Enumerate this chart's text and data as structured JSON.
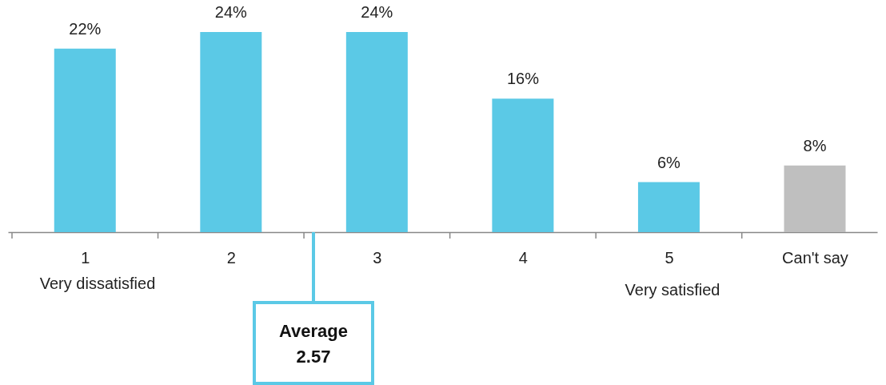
{
  "chart_data": {
    "type": "bar",
    "categories": [
      "1",
      "2",
      "3",
      "4",
      "5",
      "Can't say"
    ],
    "values": [
      22,
      24,
      24,
      16,
      6,
      8
    ],
    "colors": [
      "#5bc9e6",
      "#5bc9e6",
      "#5bc9e6",
      "#5bc9e6",
      "#5bc9e6",
      "#bfbfbf"
    ],
    "value_labels": [
      "22%",
      "24%",
      "24%",
      "16%",
      "6%",
      "8%"
    ],
    "annotations": [
      "Very dissatisfied",
      "Very satisfied",
      "Average\n2.57"
    ],
    "grid": false
  }
}
